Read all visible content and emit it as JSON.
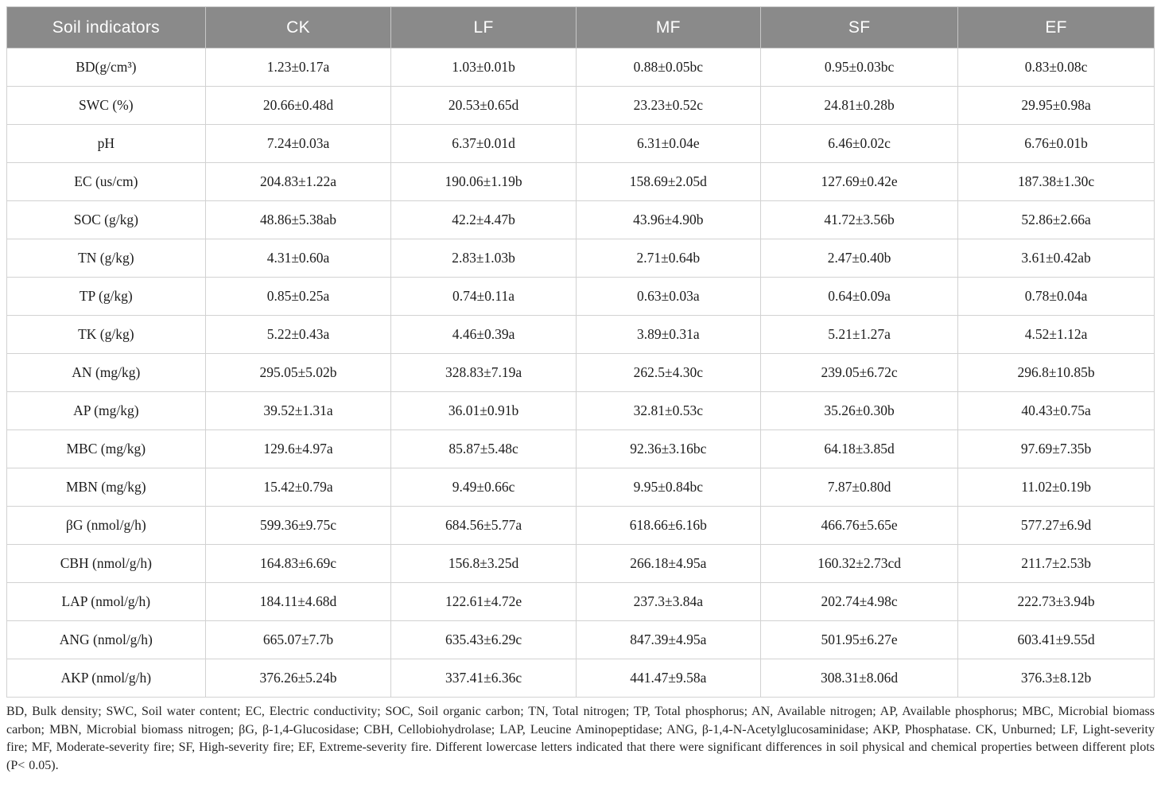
{
  "table": {
    "columns": [
      "Soil indicators",
      "CK",
      "LF",
      "MF",
      "SF",
      "EF"
    ],
    "rows": [
      {
        "indicator": "BD(g/cm³)",
        "values": [
          "1.23±0.17a",
          "1.03±0.01b",
          "0.88±0.05bc",
          "0.95±0.03bc",
          "0.83±0.08c"
        ]
      },
      {
        "indicator": "SWC (%)",
        "values": [
          "20.66±0.48d",
          "20.53±0.65d",
          "23.23±0.52c",
          "24.81±0.28b",
          "29.95±0.98a"
        ]
      },
      {
        "indicator": "pH",
        "values": [
          "7.24±0.03a",
          "6.37±0.01d",
          "6.31±0.04e",
          "6.46±0.02c",
          "6.76±0.01b"
        ]
      },
      {
        "indicator": "EC (us/cm)",
        "values": [
          "204.83±1.22a",
          "190.06±1.19b",
          "158.69±2.05d",
          "127.69±0.42e",
          "187.38±1.30c"
        ]
      },
      {
        "indicator": "SOC (g/kg)",
        "values": [
          "48.86±5.38ab",
          "42.2±4.47b",
          "43.96±4.90b",
          "41.72±3.56b",
          "52.86±2.66a"
        ]
      },
      {
        "indicator": "TN (g/kg)",
        "values": [
          "4.31±0.60a",
          "2.83±1.03b",
          "2.71±0.64b",
          "2.47±0.40b",
          "3.61±0.42ab"
        ]
      },
      {
        "indicator": "TP (g/kg)",
        "values": [
          "0.85±0.25a",
          "0.74±0.11a",
          "0.63±0.03a",
          "0.64±0.09a",
          "0.78±0.04a"
        ]
      },
      {
        "indicator": "TK (g/kg)",
        "values": [
          "5.22±0.43a",
          "4.46±0.39a",
          "3.89±0.31a",
          "5.21±1.27a",
          "4.52±1.12a"
        ]
      },
      {
        "indicator": "AN (mg/kg)",
        "values": [
          "295.05±5.02b",
          "328.83±7.19a",
          "262.5±4.30c",
          "239.05±6.72c",
          "296.8±10.85b"
        ]
      },
      {
        "indicator": "AP (mg/kg)",
        "values": [
          "39.52±1.31a",
          "36.01±0.91b",
          "32.81±0.53c",
          "35.26±0.30b",
          "40.43±0.75a"
        ]
      },
      {
        "indicator": "MBC (mg/kg)",
        "values": [
          "129.6±4.97a",
          "85.87±5.48c",
          "92.36±3.16bc",
          "64.18±3.85d",
          "97.69±7.35b"
        ]
      },
      {
        "indicator": "MBN (mg/kg)",
        "values": [
          "15.42±0.79a",
          "9.49±0.66c",
          "9.95±0.84bc",
          "7.87±0.80d",
          "11.02±0.19b"
        ]
      },
      {
        "indicator": "βG (nmol/g/h)",
        "values": [
          "599.36±9.75c",
          "684.56±5.77a",
          "618.66±6.16b",
          "466.76±5.65e",
          "577.27±6.9d"
        ]
      },
      {
        "indicator": "CBH (nmol/g/h)",
        "values": [
          "164.83±6.69c",
          "156.8±3.25d",
          "266.18±4.95a",
          "160.32±2.73cd",
          "211.7±2.53b"
        ]
      },
      {
        "indicator": "LAP (nmol/g/h)",
        "values": [
          "184.11±4.68d",
          "122.61±4.72e",
          "237.3±3.84a",
          "202.74±4.98c",
          "222.73±3.94b"
        ]
      },
      {
        "indicator": "ANG (nmol/g/h)",
        "values": [
          "665.07±7.7b",
          "635.43±6.29c",
          "847.39±4.95a",
          "501.95±6.27e",
          "603.41±9.55d"
        ]
      },
      {
        "indicator": "AKP (nmol/g/h)",
        "values": [
          "376.26±5.24b",
          "337.41±6.36c",
          "441.47±9.58a",
          "308.31±8.06d",
          "376.3±8.12b"
        ]
      }
    ]
  },
  "footnote": "BD, Bulk density; SWC, Soil water content; EC, Electric conductivity; SOC, Soil organic carbon; TN, Total nitrogen; TP, Total phosphorus; AN, Available nitrogen; AP, Available phosphorus; MBC, Microbial biomass carbon; MBN, Microbial biomass nitrogen; βG, β-1,4-Glucosidase; CBH, Cellobiohydrolase; LAP, Leucine Aminopeptidase; ANG, β-1,4-N-Acetylglucosaminidase; AKP, Phosphatase. CK, Unburned; LF, Light-severity fire; MF, Moderate-severity fire; SF, High-severity fire; EF, Extreme-severity fire. Different lowercase letters indicated that there were significant differences in soil physical and chemical properties between different plots (P< 0.05).",
  "colors": {
    "header_bg": "#8a8a8a",
    "header_text": "#ffffff",
    "border": "#d2d2d2",
    "cell_text": "#1c1c1c",
    "footnote_text": "#262626"
  }
}
